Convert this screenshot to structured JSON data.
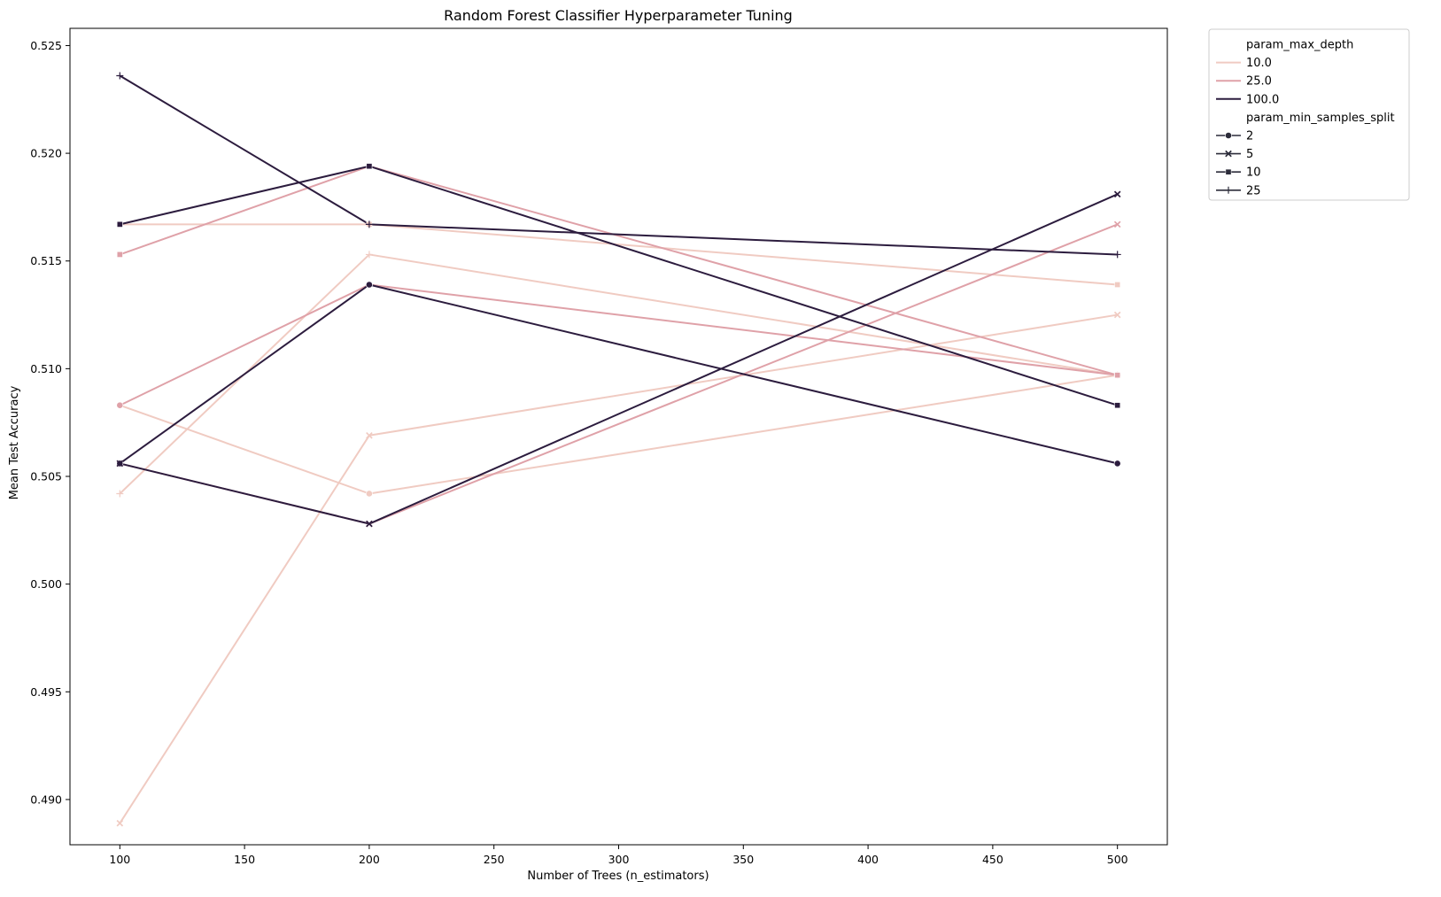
{
  "chart_data": {
    "type": "line",
    "title": "Random Forest Classifier Hyperparameter Tuning",
    "xlabel": "Number of Trees (n_estimators)",
    "ylabel": "Mean Test Accuracy",
    "x": [
      100,
      200,
      500
    ],
    "xlim": [
      80,
      520
    ],
    "ylim": [
      0.4879,
      0.5258
    ],
    "xticks": [
      "100",
      "150",
      "200",
      "250",
      "300",
      "350",
      "400",
      "450",
      "500"
    ],
    "yticks": [
      "0.490",
      "0.495",
      "0.500",
      "0.505",
      "0.510",
      "0.515",
      "0.520",
      "0.525"
    ],
    "grid": false,
    "legend_position": "outside-top-right",
    "legend": {
      "hue_title": "param_max_depth",
      "hue_entries": [
        "10.0",
        "25.0",
        "100.0"
      ],
      "style_title": "param_min_samples_split",
      "style_entries": [
        "2",
        "5",
        "10",
        "25"
      ]
    },
    "colors": {
      "10.0": "#f0cbc2",
      "25.0": "#dfa1a8",
      "100.0": "#2c1c3e",
      "legend_marker": "#2c2c3a",
      "axis": "#000000",
      "legend_border": "#cccccc"
    },
    "markers": {
      "2": "circle",
      "5": "x",
      "10": "square",
      "25": "plus"
    },
    "series": [
      {
        "max_depth": "10.0",
        "min_samples_split": "2",
        "values": [
          0.5083,
          0.5042,
          0.5097
        ]
      },
      {
        "max_depth": "10.0",
        "min_samples_split": "5",
        "values": [
          0.4889,
          0.5069,
          0.5125
        ]
      },
      {
        "max_depth": "10.0",
        "min_samples_split": "10",
        "values": [
          0.5167,
          0.5167,
          0.5139
        ]
      },
      {
        "max_depth": "10.0",
        "min_samples_split": "25",
        "values": [
          0.5042,
          0.5153,
          0.5097
        ]
      },
      {
        "max_depth": "25.0",
        "min_samples_split": "2",
        "values": [
          0.5083,
          0.5139,
          0.5097
        ]
      },
      {
        "max_depth": "25.0",
        "min_samples_split": "5",
        "values": [
          0.5056,
          0.5028,
          0.5167
        ]
      },
      {
        "max_depth": "25.0",
        "min_samples_split": "10",
        "values": [
          0.5153,
          0.5194,
          0.5097
        ]
      },
      {
        "max_depth": "100.0",
        "min_samples_split": "2",
        "values": [
          0.5056,
          0.5139,
          0.5056
        ]
      },
      {
        "max_depth": "100.0",
        "min_samples_split": "5",
        "values": [
          0.5056,
          0.5028,
          0.5181
        ]
      },
      {
        "max_depth": "100.0",
        "min_samples_split": "10",
        "values": [
          0.5167,
          0.5194,
          0.5083
        ]
      },
      {
        "max_depth": "100.0",
        "min_samples_split": "25",
        "values": [
          0.5236,
          0.5167,
          0.5153
        ]
      }
    ]
  }
}
